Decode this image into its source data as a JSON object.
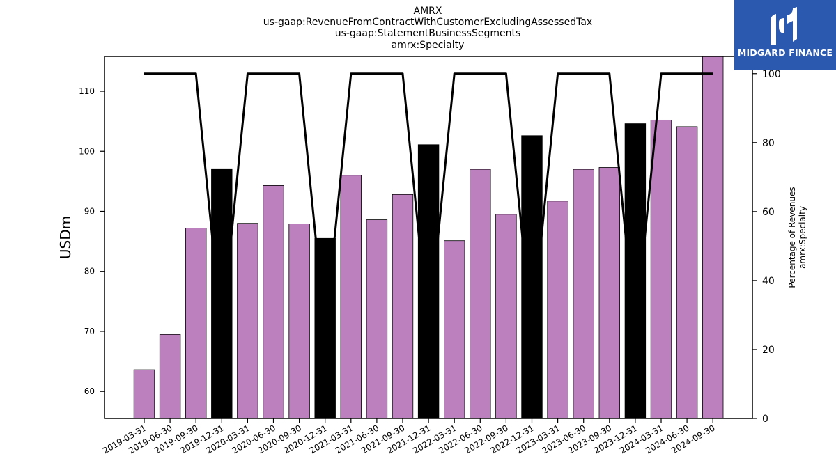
{
  "chart_data": {
    "type": "bar",
    "title_lines": [
      "AMRX",
      "us-gaap:RevenueFromContractWithCustomerExcludingAssessedTax",
      "us-gaap:StatementBusinessSegments",
      "amrx:Specialty"
    ],
    "ylabel": "USDm",
    "y2label_lines": [
      "Percentage of Revenues",
      "amrx:Specialty"
    ],
    "ylim": [
      55.5,
      115.8
    ],
    "y2lim": [
      0,
      105
    ],
    "yticks": [
      60,
      70,
      80,
      90,
      100,
      110
    ],
    "y2ticks": [
      0,
      20,
      40,
      60,
      80,
      100
    ],
    "categories": [
      "2019-03-31",
      "2019-06-30",
      "2019-09-30",
      "2019-12-31",
      "2020-03-31",
      "2020-06-30",
      "2020-09-30",
      "2020-12-31",
      "2021-03-31",
      "2021-06-30",
      "2021-09-30",
      "2021-12-31",
      "2022-03-31",
      "2022-06-30",
      "2022-09-30",
      "2022-12-31",
      "2023-03-31",
      "2023-06-30",
      "2023-09-30",
      "2023-12-31",
      "2024-03-31",
      "2024-06-30",
      "2024-09-30"
    ],
    "series": [
      {
        "values": [
          63.6,
          69.5,
          87.2,
          97.1,
          88.0,
          94.3,
          87.9,
          85.5,
          96.0,
          88.6,
          92.8,
          101.1,
          85.1,
          97.0,
          89.5,
          102.6,
          91.7,
          97.0,
          97.3,
          104.6,
          105.2,
          104.1,
          115.8
        ],
        "colors": [
          "#bb80bd",
          "#bb80bd",
          "#bb80bd",
          "#000000",
          "#bb80bd",
          "#bb80bd",
          "#bb80bd",
          "#000000",
          "#bb80bd",
          "#bb80bd",
          "#bb80bd",
          "#000000",
          "#bb80bd",
          "#bb80bd",
          "#bb80bd",
          "#000000",
          "#bb80bd",
          "#bb80bd",
          "#bb80bd",
          "#000000",
          "#bb80bd",
          "#bb80bd",
          "#bb80bd"
        ]
      },
      {
        "type": "line",
        "axis": "right",
        "color": "#000000",
        "values": [
          100,
          100,
          100,
          25,
          100,
          100,
          100,
          25,
          100,
          100,
          100,
          25,
          100,
          100,
          100,
          25,
          100,
          100,
          100,
          25,
          100,
          100,
          100
        ]
      }
    ],
    "grid": false,
    "legend": "none"
  },
  "logo": {
    "text": "MIDGARD FINANCE",
    "background": "#2b59b0"
  }
}
